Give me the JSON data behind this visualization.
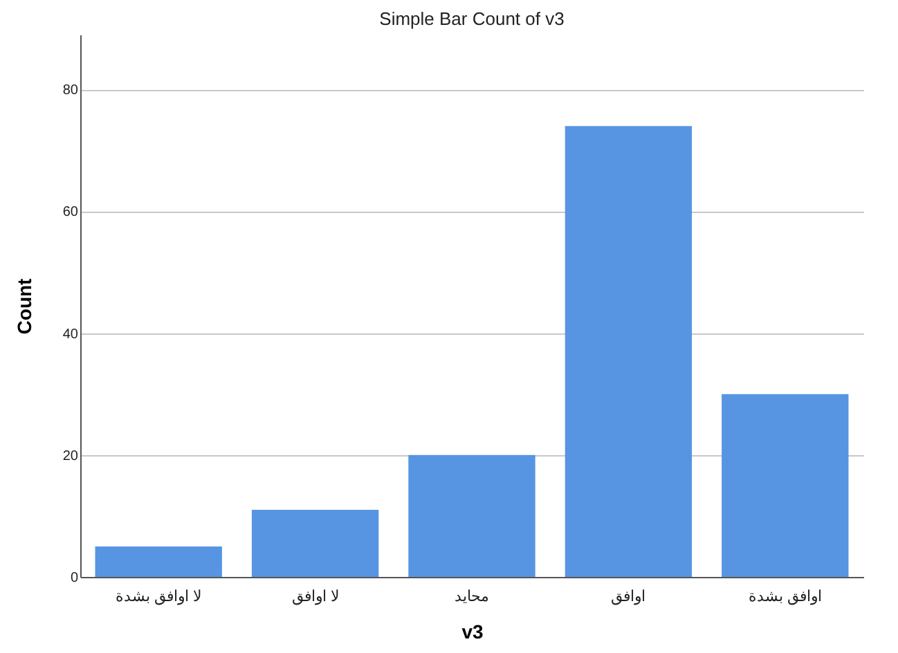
{
  "chart_data": {
    "type": "bar",
    "title": "Simple Bar Count of v3",
    "xlabel": "v3",
    "ylabel": "Count",
    "categories": [
      "لا اوافق بشدة",
      "لا اوافق",
      "محايد",
      "اوافق",
      "اوافق بشدة"
    ],
    "values": [
      5,
      11,
      20,
      74,
      30
    ],
    "color": "#5795e3",
    "ylim": [
      0,
      89
    ],
    "yticks": [
      0,
      20,
      40,
      60,
      80
    ],
    "grid": "y"
  }
}
